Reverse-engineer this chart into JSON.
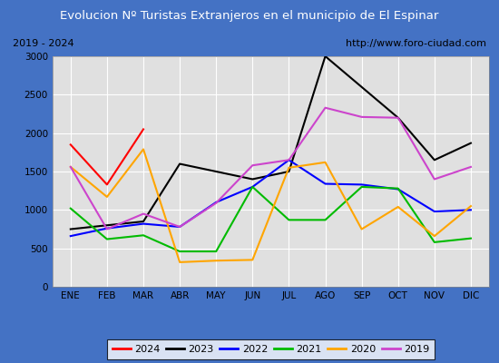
{
  "title": "Evolucion Nº Turistas Extranjeros en el municipio de El Espinar",
  "subtitle_left": "2019 - 2024",
  "subtitle_right": "http://www.foro-ciudad.com",
  "months": [
    "ENE",
    "FEB",
    "MAR",
    "ABR",
    "MAY",
    "JUN",
    "JUL",
    "AGO",
    "SEP",
    "OCT",
    "NOV",
    "DIC"
  ],
  "series": {
    "2024": [
      1850,
      1330,
      2050,
      null,
      null,
      null,
      null,
      null,
      null,
      null,
      null,
      null
    ],
    "2023": [
      750,
      800,
      850,
      1600,
      1500,
      1400,
      1500,
      3000,
      2600,
      2200,
      1650,
      1870
    ],
    "2022": [
      660,
      760,
      820,
      780,
      1100,
      1300,
      1650,
      1340,
      1330,
      1270,
      980,
      1000
    ],
    "2021": [
      1020,
      620,
      670,
      460,
      460,
      1300,
      870,
      870,
      1300,
      1280,
      580,
      630
    ],
    "2020": [
      1560,
      1170,
      1790,
      320,
      340,
      350,
      1550,
      1620,
      750,
      1040,
      660,
      1050
    ],
    "2019": [
      1560,
      750,
      950,
      780,
      1090,
      1580,
      1650,
      2330,
      2210,
      2200,
      1400,
      1560
    ]
  },
  "colors": {
    "2024": "#ff0000",
    "2023": "#000000",
    "2022": "#0000ff",
    "2021": "#00bb00",
    "2020": "#ffa500",
    "2019": "#cc44cc"
  },
  "ylim": [
    0,
    3000
  ],
  "yticks": [
    0,
    500,
    1000,
    1500,
    2000,
    2500,
    3000
  ],
  "title_bg": "#4472c4",
  "title_color": "#ffffff",
  "plot_bg": "#e0e0e0",
  "grid_color": "#ffffff",
  "border_color": "#4472c4"
}
